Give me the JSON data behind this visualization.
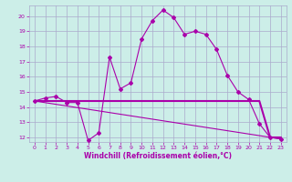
{
  "xlabel": "Windchill (Refroidissement éolien,°C)",
  "xlim": [
    -0.5,
    23.5
  ],
  "ylim": [
    11.7,
    20.7
  ],
  "yticks": [
    12,
    13,
    14,
    15,
    16,
    17,
    18,
    19,
    20
  ],
  "xticks": [
    0,
    1,
    2,
    3,
    4,
    5,
    6,
    7,
    8,
    9,
    10,
    11,
    12,
    13,
    14,
    15,
    16,
    17,
    18,
    19,
    20,
    21,
    22,
    23
  ],
  "background_color": "#cceee8",
  "grid_color": "#aaaacc",
  "line_color": "#aa00aa",
  "series": {
    "line1_x": [
      0,
      1,
      2,
      3,
      4,
      5,
      6,
      7,
      8,
      9,
      10,
      11,
      12,
      13,
      14,
      15,
      16,
      17,
      18,
      19,
      20,
      21,
      22,
      23
    ],
    "line1_y": [
      14.4,
      14.6,
      14.7,
      14.3,
      14.3,
      11.8,
      12.3,
      17.3,
      15.2,
      15.6,
      18.5,
      19.7,
      20.4,
      19.9,
      18.8,
      19.0,
      18.8,
      17.8,
      16.1,
      15.0,
      14.5,
      12.9,
      12.0,
      11.9
    ],
    "line2_x": [
      0,
      21,
      22,
      23
    ],
    "line2_y": [
      14.4,
      14.4,
      12.0,
      12.0
    ],
    "line3_x": [
      0,
      23
    ],
    "line3_y": [
      14.4,
      11.9
    ]
  }
}
